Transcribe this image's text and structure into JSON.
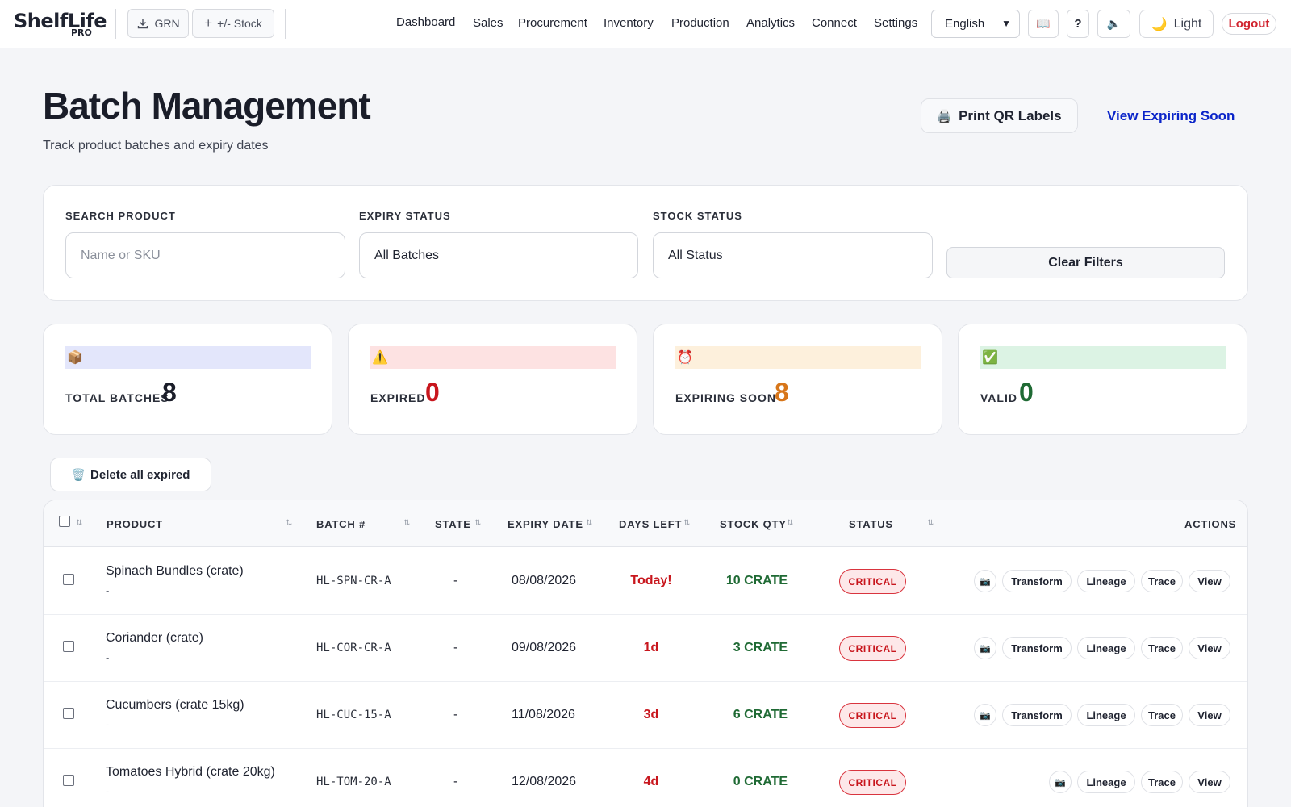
{
  "app": {
    "logo_text": "ShelfLife",
    "logo_sub": "PRO",
    "grn_label": "GRN",
    "stock_label": "+/- Stock",
    "nav": [
      "Dashboard",
      "Sales",
      "Procurement",
      "Inventory",
      "Production",
      "Analytics",
      "Connect",
      "Settings"
    ],
    "language": "English",
    "help_label": "?",
    "theme_label": "Light",
    "logout_label": "Logout"
  },
  "header": {
    "title": "Batch Management",
    "subtitle": "Track product batches and expiry dates",
    "print_label": "Print QR Labels",
    "view_expiring_label": "View Expiring Soon"
  },
  "filters": {
    "search_label": "SEARCH PRODUCT",
    "search_placeholder": "Name or SKU",
    "expiry_label": "EXPIRY STATUS",
    "expiry_value": "All Batches",
    "stock_label": "STOCK STATUS",
    "stock_value": "All Status",
    "clear_label": "Clear Filters"
  },
  "stats": [
    {
      "label": "TOTAL BATCHES",
      "value": "8",
      "color": "#1a1d29",
      "bar": "#e3e6fb",
      "icon": "📦"
    },
    {
      "label": "EXPIRED",
      "value": "0",
      "color": "#c8161d",
      "bar": "#fde2e2",
      "icon": "⚠️"
    },
    {
      "label": "EXPIRING SOON",
      "value": "8",
      "color": "#d7761a",
      "bar": "#fdf0dc",
      "icon": "⏰"
    },
    {
      "label": "VALID",
      "value": "0",
      "color": "#1f6a34",
      "bar": "#dcf3e4",
      "icon": "✅"
    }
  ],
  "delete_expired_label": "Delete all expired",
  "table": {
    "columns": [
      "PRODUCT",
      "BATCH #",
      "STATE",
      "EXPIRY DATE",
      "DAYS LEFT",
      "STOCK QTY",
      "STATUS",
      "ACTIONS"
    ],
    "rows": [
      {
        "product": "Spinach Bundles (crate)",
        "sub": "-",
        "batch": "HL-SPN-CR-A",
        "state": "-",
        "expiry": "08/08/2026",
        "days": "Today!",
        "qty": "10 CRATE",
        "status": "CRITICAL",
        "actions": [
          "Transform",
          "Lineage",
          "Trace",
          "View"
        ]
      },
      {
        "product": "Coriander (crate)",
        "sub": "-",
        "batch": "HL-COR-CR-A",
        "state": "-",
        "expiry": "09/08/2026",
        "days": "1d",
        "qty": "3 CRATE",
        "status": "CRITICAL",
        "actions": [
          "Transform",
          "Lineage",
          "Trace",
          "View"
        ]
      },
      {
        "product": "Cucumbers (crate 15kg)",
        "sub": "-",
        "batch": "HL-CUC-15-A",
        "state": "-",
        "expiry": "11/08/2026",
        "days": "3d",
        "qty": "6 CRATE",
        "status": "CRITICAL",
        "actions": [
          "Transform",
          "Lineage",
          "Trace",
          "View"
        ]
      },
      {
        "product": "Tomatoes Hybrid (crate 20kg)",
        "sub": "-",
        "batch": "HL-TOM-20-A",
        "state": "-",
        "expiry": "12/08/2026",
        "days": "4d",
        "qty": "0 CRATE",
        "status": "CRITICAL",
        "actions": [
          "Lineage",
          "Trace",
          "View"
        ]
      }
    ]
  }
}
